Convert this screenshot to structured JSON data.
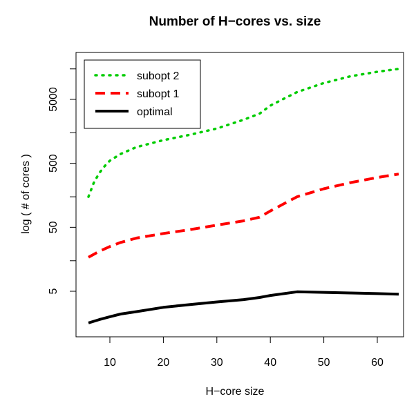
{
  "chart_data": {
    "type": "line",
    "title": "Number of H−cores vs. size",
    "xlabel": "H−core size",
    "ylabel": "log ( # of cores )",
    "x_ticks": [
      10,
      20,
      30,
      40,
      50,
      60
    ],
    "x_tick_labels": [
      "10",
      "20",
      "30",
      "40",
      "50",
      "60"
    ],
    "y_scale": "log",
    "y_ticks_labeled": [
      5,
      50,
      500,
      5000
    ],
    "y_tick_labels": [
      "5",
      "50",
      "500",
      "5000"
    ],
    "y_ticks_minor": [
      15,
      150,
      1500,
      15000
    ],
    "xlim": [
      4,
      66
    ],
    "ylim": [
      1.3,
      26000
    ],
    "legend_position": "top-left",
    "series": [
      {
        "name": "subopt 2",
        "color": "#00cc00",
        "line_style": "dotted",
        "x": [
          6,
          7,
          8,
          9,
          10,
          12,
          15,
          20,
          25,
          30,
          35,
          38,
          40,
          45,
          50,
          55,
          60,
          64
        ],
        "y": [
          150,
          250,
          350,
          450,
          550,
          700,
          900,
          1150,
          1400,
          1750,
          2400,
          3000,
          4000,
          6500,
          9000,
          11500,
          13500,
          15000
        ]
      },
      {
        "name": "subopt 1",
        "color": "#ff0000",
        "line_style": "dashed",
        "x": [
          6,
          8,
          10,
          12,
          15,
          20,
          25,
          30,
          35,
          38,
          40,
          45,
          50,
          55,
          60,
          64
        ],
        "y": [
          17,
          21,
          25,
          29,
          34,
          40,
          46,
          54,
          63,
          72,
          90,
          150,
          200,
          250,
          300,
          340
        ]
      },
      {
        "name": "optimal",
        "color": "#000000",
        "line_style": "solid",
        "x": [
          6,
          8,
          10,
          12,
          15,
          20,
          25,
          30,
          35,
          38,
          40,
          45,
          50,
          55,
          60,
          64
        ],
        "y": [
          1.6,
          1.8,
          2.0,
          2.2,
          2.4,
          2.8,
          3.1,
          3.4,
          3.7,
          4.0,
          4.3,
          4.9,
          4.8,
          4.7,
          4.6,
          4.5
        ]
      }
    ]
  }
}
